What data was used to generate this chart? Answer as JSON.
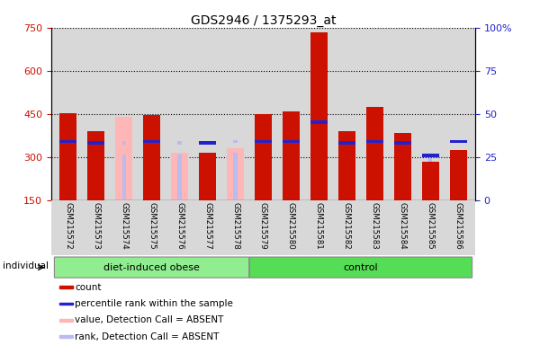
{
  "title": "GDS2946 / 1375293_at",
  "samples": [
    "GSM215572",
    "GSM215573",
    "GSM215574",
    "GSM215575",
    "GSM215576",
    "GSM215577",
    "GSM215578",
    "GSM215579",
    "GSM215580",
    "GSM215581",
    "GSM215582",
    "GSM215583",
    "GSM215584",
    "GSM215585",
    "GSM215586"
  ],
  "groups": [
    "diet-induced obese",
    "diet-induced obese",
    "diet-induced obese",
    "diet-induced obese",
    "diet-induced obese",
    "diet-induced obese",
    "diet-induced obese",
    "control",
    "control",
    "control",
    "control",
    "control",
    "control",
    "control",
    "control"
  ],
  "count_values": [
    452,
    390,
    null,
    445,
    null,
    315,
    null,
    450,
    460,
    735,
    390,
    475,
    385,
    285,
    325
  ],
  "absent_count_values": [
    null,
    null,
    440,
    null,
    315,
    null,
    330,
    null,
    null,
    null,
    null,
    null,
    null,
    null,
    null
  ],
  "absent_rank_values": [
    null,
    null,
    310,
    null,
    310,
    null,
    315,
    null,
    null,
    null,
    null,
    null,
    null,
    295,
    null
  ],
  "blue_rank_pct": [
    34,
    33,
    null,
    34,
    null,
    33,
    null,
    34,
    34,
    45,
    33,
    34,
    33,
    26,
    34
  ],
  "absent_blue_rank_pct": [
    null,
    null,
    33,
    null,
    33,
    null,
    34,
    null,
    null,
    null,
    null,
    null,
    null,
    null,
    null
  ],
  "ylim_left": [
    150,
    750
  ],
  "ylim_right": [
    0,
    100
  ],
  "left_ticks": [
    150,
    300,
    450,
    600,
    750
  ],
  "right_ticks": [
    0,
    25,
    50,
    75,
    100
  ],
  "bar_color_red": "#CC1100",
  "bar_color_pink": "#FFB6B6",
  "bar_color_blue": "#2222CC",
  "bar_color_lightblue": "#BBBBEE",
  "bar_width": 0.6,
  "bg_color": "#D8D8D8",
  "group_color_1": "#90EE90",
  "group_color_2": "#55DD55",
  "legend_items": [
    {
      "label": "count",
      "color": "#CC1100"
    },
    {
      "label": "percentile rank within the sample",
      "color": "#2222CC"
    },
    {
      "label": "value, Detection Call = ABSENT",
      "color": "#FFB6B6"
    },
    {
      "label": "rank, Detection Call = ABSENT",
      "color": "#BBBBEE"
    }
  ]
}
